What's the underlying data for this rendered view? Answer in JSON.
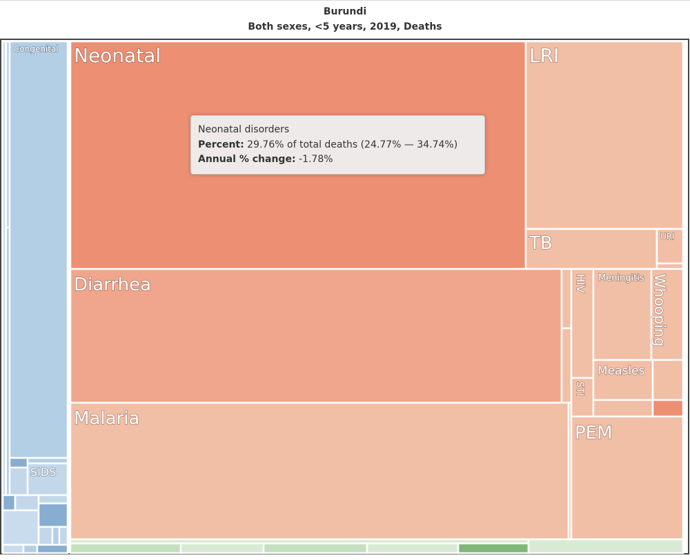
{
  "header": {
    "title": "Burundi",
    "subtitle": "Both sexes, <5 years, 2019, Deaths"
  },
  "colors": {
    "communicable_dark": "#ed8f72",
    "communicable_mid": "#f0a68d",
    "communicable_light": "#f1bea6",
    "noncommunicable": "#b3cfe6",
    "noncommunicable_dark": "#87add0",
    "injuries": "#c5e0c0",
    "frame": "#444444"
  },
  "tooltip": {
    "name": "Neonatal disorders",
    "percent_label": "Percent:",
    "percent_text": "29.76% of total deaths (24.77% — 34.74%)",
    "change_label": "Annual % change:",
    "change_text": "-1.78%"
  },
  "chart_data": {
    "type": "treemap",
    "title": "Burundi",
    "subtitle": "Both sexes, <5 years, 2019, Deaths",
    "unit": "percent of total deaths",
    "nodes": [
      {
        "label": "Neonatal",
        "group": "communicable",
        "percent": 29.76,
        "percent_low": 24.77,
        "percent_high": 34.74,
        "annual_change": -1.78
      },
      {
        "label": "Diarrhea",
        "group": "communicable",
        "percent": 15.5
      },
      {
        "label": "Malaria",
        "group": "communicable",
        "percent": 14.5
      },
      {
        "label": "LRI",
        "group": "communicable",
        "percent": 10.2
      },
      {
        "label": "TB",
        "group": "communicable",
        "percent": 2.4
      },
      {
        "label": "URI",
        "group": "communicable",
        "percent": 0.4
      },
      {
        "label": "PEM",
        "group": "communicable",
        "percent": 3.3
      },
      {
        "label": "HIV",
        "group": "communicable",
        "percent": 1.3
      },
      {
        "label": "STI",
        "group": "communicable",
        "percent": 0.4
      },
      {
        "label": "Meningitis",
        "group": "communicable",
        "percent": 1.3
      },
      {
        "label": "Whooping",
        "group": "communicable",
        "percent": 0.7
      },
      {
        "label": "Measles",
        "group": "communicable",
        "percent": 0.6
      },
      {
        "label": "Congenital",
        "group": "non-communicable",
        "percent": 7.6
      },
      {
        "label": "SIDS",
        "group": "non-communicable",
        "percent": 0.3
      }
    ]
  }
}
